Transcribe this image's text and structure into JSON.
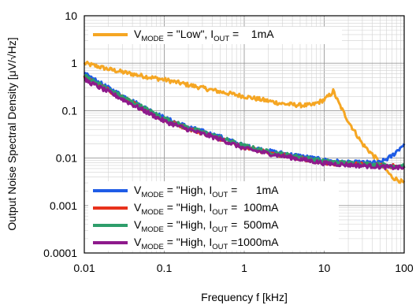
{
  "chart_data": {
    "type": "line",
    "xscale": "log",
    "yscale": "log",
    "xlim": [
      0.01,
      100
    ],
    "ylim": [
      0.0001,
      10
    ],
    "xlabel": "Frequency f [kHz]",
    "ylabel": "Output Noise Spectral Density [μV/√Hz]",
    "x_ticks": [
      "0.01",
      "0.1",
      "1",
      "10",
      "100"
    ],
    "y_ticks": [
      "0.0001",
      "0.001",
      "0.01",
      "0.1",
      "1",
      "10"
    ],
    "grid": true,
    "legend_placement": "top (Low) and bottom-right (High)",
    "series": [
      {
        "legend": {
          "prefix": "V",
          "sub1": "MODE",
          "mid": " = \"Low\", I",
          "sub2": "OUT",
          "suffix": " =    1mA"
        },
        "color": "#F5A623",
        "x": [
          0.01,
          0.015,
          0.02,
          0.03,
          0.05,
          0.1,
          0.2,
          0.5,
          1,
          2,
          3,
          5,
          7,
          10,
          12,
          13,
          15,
          20,
          30,
          50,
          70,
          100
        ],
        "y": [
          1.0,
          0.85,
          0.75,
          0.65,
          0.55,
          0.45,
          0.35,
          0.25,
          0.2,
          0.16,
          0.14,
          0.13,
          0.13,
          0.17,
          0.22,
          0.26,
          0.15,
          0.06,
          0.02,
          0.008,
          0.004,
          0.003
        ]
      },
      {
        "legend": {
          "prefix": "V",
          "sub1": "MODE",
          "mid": " = \"High, I",
          "sub2": "OUT",
          "suffix": " =      1mA"
        },
        "color": "#1F5CE6",
        "x": [
          0.01,
          0.02,
          0.05,
          0.1,
          0.2,
          0.5,
          1,
          2,
          5,
          10,
          20,
          50,
          70,
          100
        ],
        "y": [
          0.6,
          0.3,
          0.13,
          0.07,
          0.045,
          0.028,
          0.018,
          0.014,
          0.011,
          0.009,
          0.008,
          0.008,
          0.011,
          0.02
        ]
      },
      {
        "legend": {
          "prefix": "V",
          "sub1": "MODE",
          "mid": " = \"High, I",
          "sub2": "OUT",
          "suffix": " =  100mA"
        },
        "color": "#E8321C",
        "x": [
          0.01,
          0.02,
          0.05,
          0.1,
          0.2,
          0.5,
          1,
          2,
          5,
          10,
          20,
          50,
          100
        ],
        "y": [
          0.5,
          0.27,
          0.12,
          0.065,
          0.042,
          0.026,
          0.017,
          0.013,
          0.01,
          0.008,
          0.0075,
          0.007,
          0.0065
        ]
      },
      {
        "legend": {
          "prefix": "V",
          "sub1": "MODE",
          "mid": " = \"High, I",
          "sub2": "OUT",
          "suffix": " =  500mA"
        },
        "color": "#2E9E6B",
        "x": [
          0.01,
          0.02,
          0.05,
          0.1,
          0.2,
          0.5,
          1,
          2,
          5,
          10,
          20,
          50,
          100
        ],
        "y": [
          0.55,
          0.28,
          0.125,
          0.068,
          0.043,
          0.027,
          0.018,
          0.0135,
          0.0105,
          0.0085,
          0.0078,
          0.0072,
          0.0068
        ]
      },
      {
        "legend": {
          "prefix": "V",
          "sub1": "MODE",
          "mid": " = \"High, I",
          "sub2": "OUT",
          "suffix": " =1000mA"
        },
        "color": "#8E1A8C",
        "x": [
          0.01,
          0.02,
          0.05,
          0.1,
          0.2,
          0.5,
          1,
          2,
          5,
          10,
          20,
          50,
          100
        ],
        "y": [
          0.45,
          0.25,
          0.11,
          0.06,
          0.04,
          0.025,
          0.016,
          0.0125,
          0.0095,
          0.0078,
          0.0072,
          0.0066,
          0.0062
        ]
      }
    ]
  }
}
